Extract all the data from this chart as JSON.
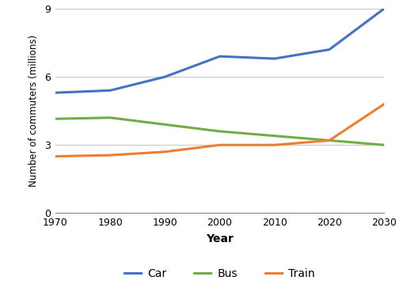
{
  "years": [
    1970,
    1980,
    1990,
    2000,
    2010,
    2020,
    2030
  ],
  "car": [
    5.3,
    5.4,
    6.0,
    6.9,
    6.8,
    7.2,
    9.0
  ],
  "bus": [
    4.15,
    4.2,
    3.9,
    3.6,
    3.4,
    3.2,
    3.0
  ],
  "train": [
    2.5,
    2.55,
    2.7,
    3.0,
    3.0,
    3.2,
    4.8
  ],
  "car_color": "#4472C4",
  "bus_color": "#70AD47",
  "train_color": "#ED7D31",
  "xlabel": "Year",
  "ylabel": "Number of commuters (millions)",
  "ylim": [
    0,
    9
  ],
  "yticks": [
    0,
    3,
    6,
    9
  ],
  "xticks": [
    1970,
    1980,
    1990,
    2000,
    2010,
    2020,
    2030
  ],
  "legend_labels": [
    "Car",
    "Bus",
    "Train"
  ],
  "line_width": 2.2,
  "bg_color": "#ffffff",
  "grid_color": "#c8c8c8"
}
